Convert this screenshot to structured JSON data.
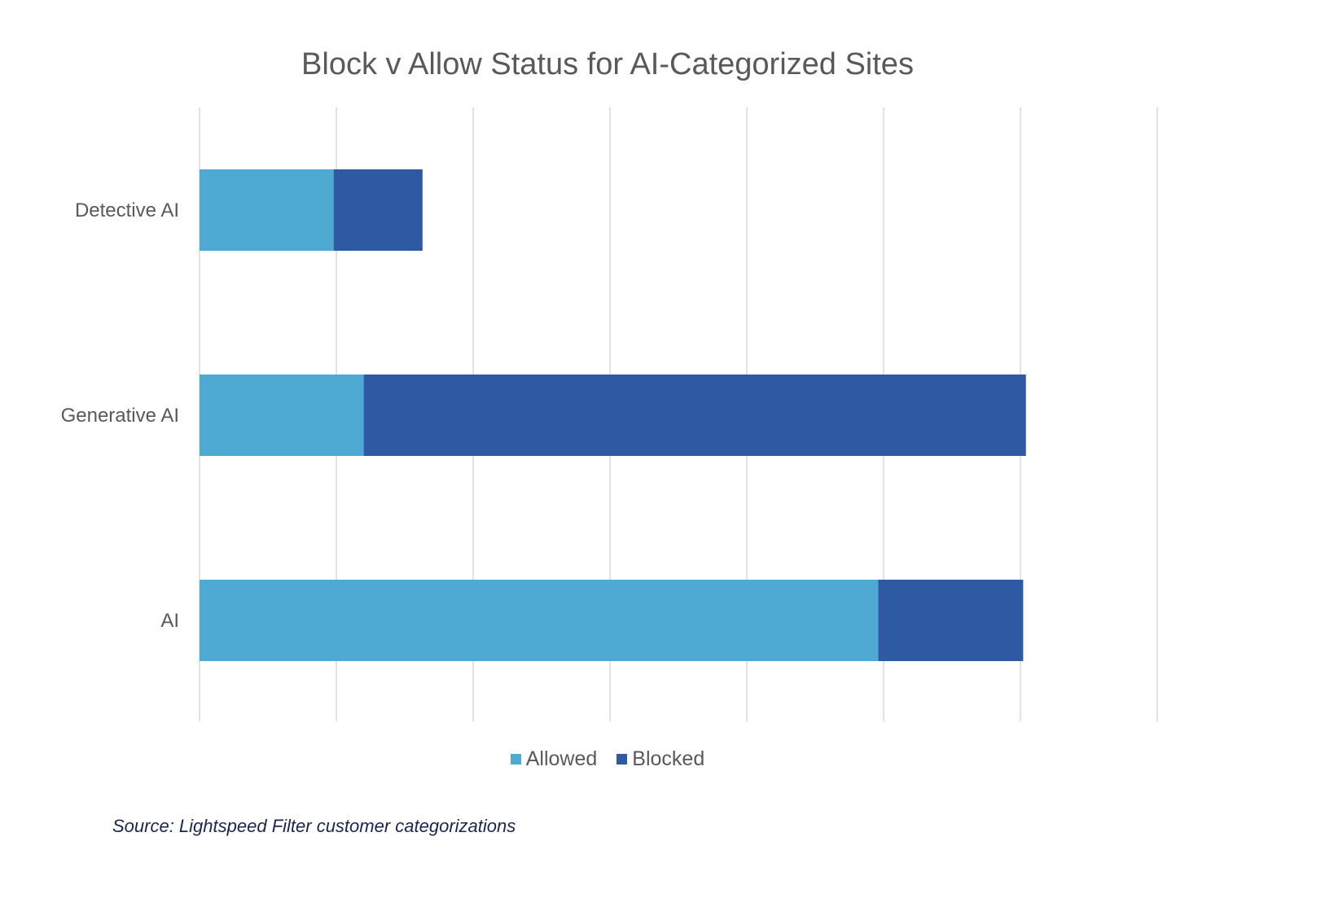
{
  "chart_data": {
    "type": "bar",
    "orientation": "horizontal",
    "stacked": true,
    "title": "Block v Allow Status for AI-Categorized Sites",
    "categories": [
      "Detective AI",
      "Generative AI",
      "AI"
    ],
    "series": [
      {
        "name": "Allowed",
        "color": "#4EAAD2",
        "values": [
          0.98,
          1.2,
          4.96
        ]
      },
      {
        "name": "Blocked",
        "color": "#2E5AA3",
        "values": [
          0.65,
          4.84,
          1.06
        ]
      }
    ],
    "xlim": [
      0,
      7
    ],
    "x_tick_labels_shown": false,
    "grid": "vertical",
    "legend_position": "bottom",
    "source": "Source: Lightspeed Filter customer categorizations"
  }
}
